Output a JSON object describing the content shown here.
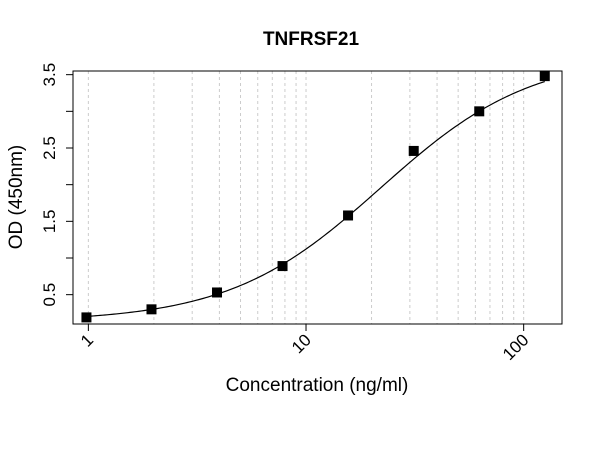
{
  "chart_data": {
    "type": "scatter",
    "title": "TNFRSF21",
    "xlabel": "Concentration (ng/ml)",
    "ylabel": "OD (450nm)",
    "x_scale": "log",
    "xlim": [
      0.85,
      150
    ],
    "ylim": [
      0.1,
      3.55
    ],
    "x_ticks": [
      1,
      10,
      100
    ],
    "x_tick_labels": [
      "1",
      "10",
      "100"
    ],
    "y_ticks": [
      0.5,
      1,
      1.5,
      2,
      2.5,
      3,
      3.5
    ],
    "y_tick_labels": [
      "0.5",
      "",
      "1.5",
      "",
      "2.5",
      "",
      "3.5"
    ],
    "grid": "vertical-dashed-minor-log",
    "marker": "square",
    "fit_line": "4PL sigmoid",
    "color": "#000000",
    "series": [
      {
        "x": [
          0.98,
          1.95,
          3.9,
          7.8,
          15.6,
          31.25,
          62.5,
          125
        ],
        "y": [
          0.19,
          0.3,
          0.53,
          0.89,
          1.58,
          2.46,
          3.0,
          3.48
        ]
      }
    ]
  }
}
